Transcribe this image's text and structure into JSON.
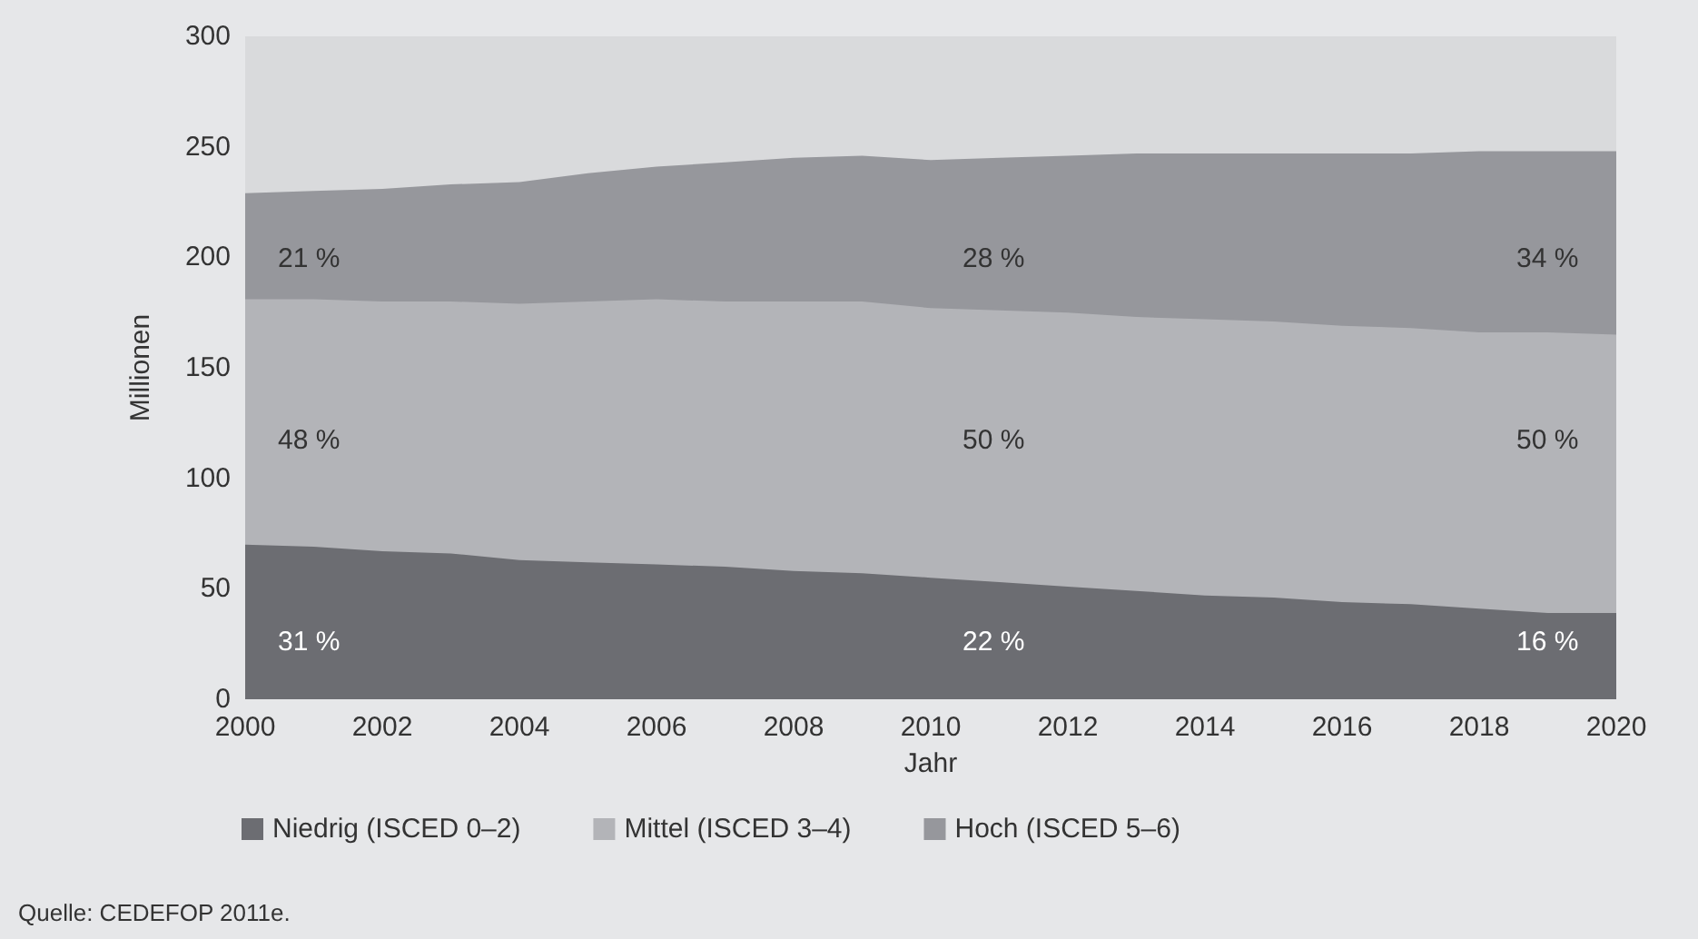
{
  "chart_data": {
    "type": "area",
    "stacked": true,
    "xlabel": "Jahr",
    "ylabel": "Millionen",
    "x": [
      2000,
      2001,
      2002,
      2003,
      2004,
      2005,
      2006,
      2007,
      2008,
      2009,
      2010,
      2011,
      2012,
      2013,
      2014,
      2015,
      2016,
      2017,
      2018,
      2019,
      2020
    ],
    "series": [
      {
        "name": "Niedrig (ISCED 0–2)",
        "color": "#6c6d72",
        "values": [
          70,
          69,
          67,
          66,
          63,
          62,
          61,
          60,
          58,
          57,
          55,
          53,
          51,
          49,
          47,
          46,
          44,
          43,
          41,
          39,
          39
        ]
      },
      {
        "name": "Mittel (ISCED 3–4)",
        "color": "#b3b4b8",
        "values": [
          111,
          112,
          113,
          114,
          116,
          118,
          120,
          120,
          122,
          123,
          122,
          123,
          124,
          124,
          125,
          125,
          125,
          125,
          125,
          127,
          126
        ]
      },
      {
        "name": "Hoch (ISCED 5–6)",
        "color": "#96979c",
        "values": [
          48,
          49,
          51,
          53,
          55,
          58,
          60,
          63,
          65,
          66,
          67,
          69,
          71,
          74,
          75,
          76,
          78,
          79,
          82,
          82,
          83
        ]
      }
    ],
    "xlim": [
      2000,
      2020
    ],
    "xticks": [
      2000,
      2002,
      2004,
      2006,
      2008,
      2010,
      2012,
      2014,
      2016,
      2018,
      2020
    ],
    "ylim": [
      0,
      300
    ],
    "yticks": [
      0,
      50,
      100,
      150,
      200,
      250,
      300
    ],
    "grid": false,
    "legend": "bottom",
    "annotations": [
      "31 %",
      "48 %",
      "21 %",
      "22 %",
      "50 %",
      "28 %",
      "16 %",
      "50 %",
      "34 %",
      "Quelle: CEDEFOP 2011e."
    ]
  }
}
